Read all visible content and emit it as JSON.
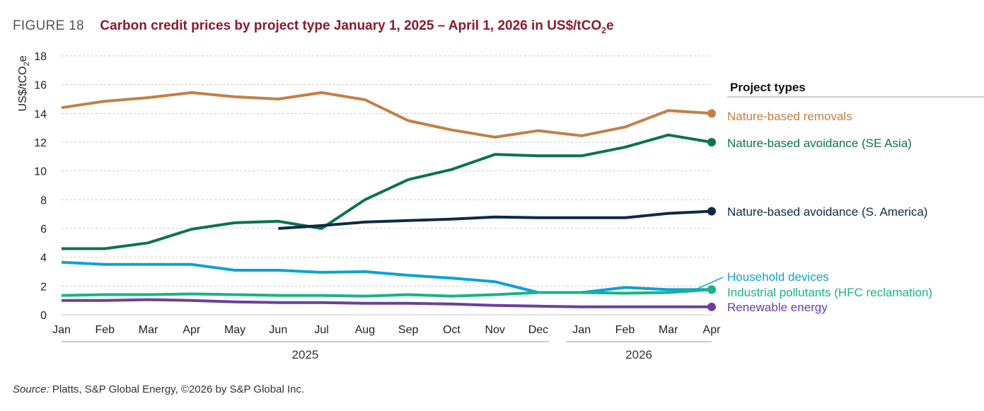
{
  "figure": {
    "number": "FIGURE 18",
    "title_main": "Carbon credit prices by project type January 1, 2025 – April 1, 2026 in US$/tCO",
    "title_sub": "2",
    "title_end": "e"
  },
  "source": {
    "label": "Source:",
    "text": " Platts, S&P Global Energy, ©2026 by S&P Global Inc."
  },
  "chart_data": {
    "type": "line",
    "ylabel_main": "US$/tCO",
    "ylabel_sub": "2",
    "ylabel_end": "e",
    "ylim": [
      0,
      18
    ],
    "yticks": [
      0,
      2,
      4,
      6,
      8,
      10,
      12,
      14,
      16,
      18
    ],
    "grid": true,
    "x": [
      "Jan",
      "Feb",
      "Mar",
      "Apr",
      "May",
      "Jun",
      "Jul",
      "Aug",
      "Sep",
      "Oct",
      "Nov",
      "Dec",
      "Jan",
      "Feb",
      "Mar",
      "Apr"
    ],
    "year_groups": [
      {
        "label": "2025",
        "from": 0,
        "to": 11
      },
      {
        "label": "2026",
        "from": 12,
        "to": 15
      }
    ],
    "legend_title": "Project types",
    "legend_position": "right",
    "series": [
      {
        "name": "Nature-based removals",
        "color": "#c47f45",
        "values": [
          14.4,
          14.85,
          15.1,
          15.45,
          15.15,
          15.0,
          15.45,
          14.95,
          13.5,
          12.85,
          12.35,
          12.8,
          12.45,
          13.05,
          14.2,
          14.0
        ]
      },
      {
        "name": "Nature-based avoidance (SE Asia)",
        "color": "#0b7350",
        "values": [
          4.6,
          4.6,
          5.0,
          5.95,
          6.4,
          6.5,
          6.0,
          8.0,
          9.4,
          10.1,
          11.15,
          11.05,
          11.05,
          11.65,
          12.5,
          12.0
        ]
      },
      {
        "name": "Nature-based avoidance (S. America)",
        "color": "#0d2a45",
        "values": [
          null,
          null,
          null,
          null,
          null,
          6.0,
          6.2,
          6.45,
          6.55,
          6.65,
          6.8,
          6.75,
          6.75,
          6.75,
          7.05,
          7.2
        ]
      },
      {
        "name": "Household devices",
        "color": "#0aa2d8",
        "values": [
          3.65,
          3.5,
          3.5,
          3.5,
          3.1,
          3.1,
          2.95,
          3.0,
          2.75,
          2.55,
          2.3,
          1.55,
          1.55,
          1.9,
          1.75,
          1.75
        ]
      },
      {
        "name": "Industrial pollutants (HFC reclamation)",
        "color": "#1ab386",
        "values": [
          1.35,
          1.4,
          1.4,
          1.45,
          1.4,
          1.35,
          1.35,
          1.3,
          1.4,
          1.3,
          1.4,
          1.55,
          1.55,
          1.5,
          1.55,
          1.75
        ]
      },
      {
        "name": "Renewable energy",
        "color": "#6b3fa0",
        "values": [
          1.0,
          1.0,
          1.05,
          1.0,
          0.9,
          0.85,
          0.85,
          0.8,
          0.8,
          0.75,
          0.65,
          0.6,
          0.55,
          0.55,
          0.55,
          0.55
        ]
      }
    ]
  }
}
